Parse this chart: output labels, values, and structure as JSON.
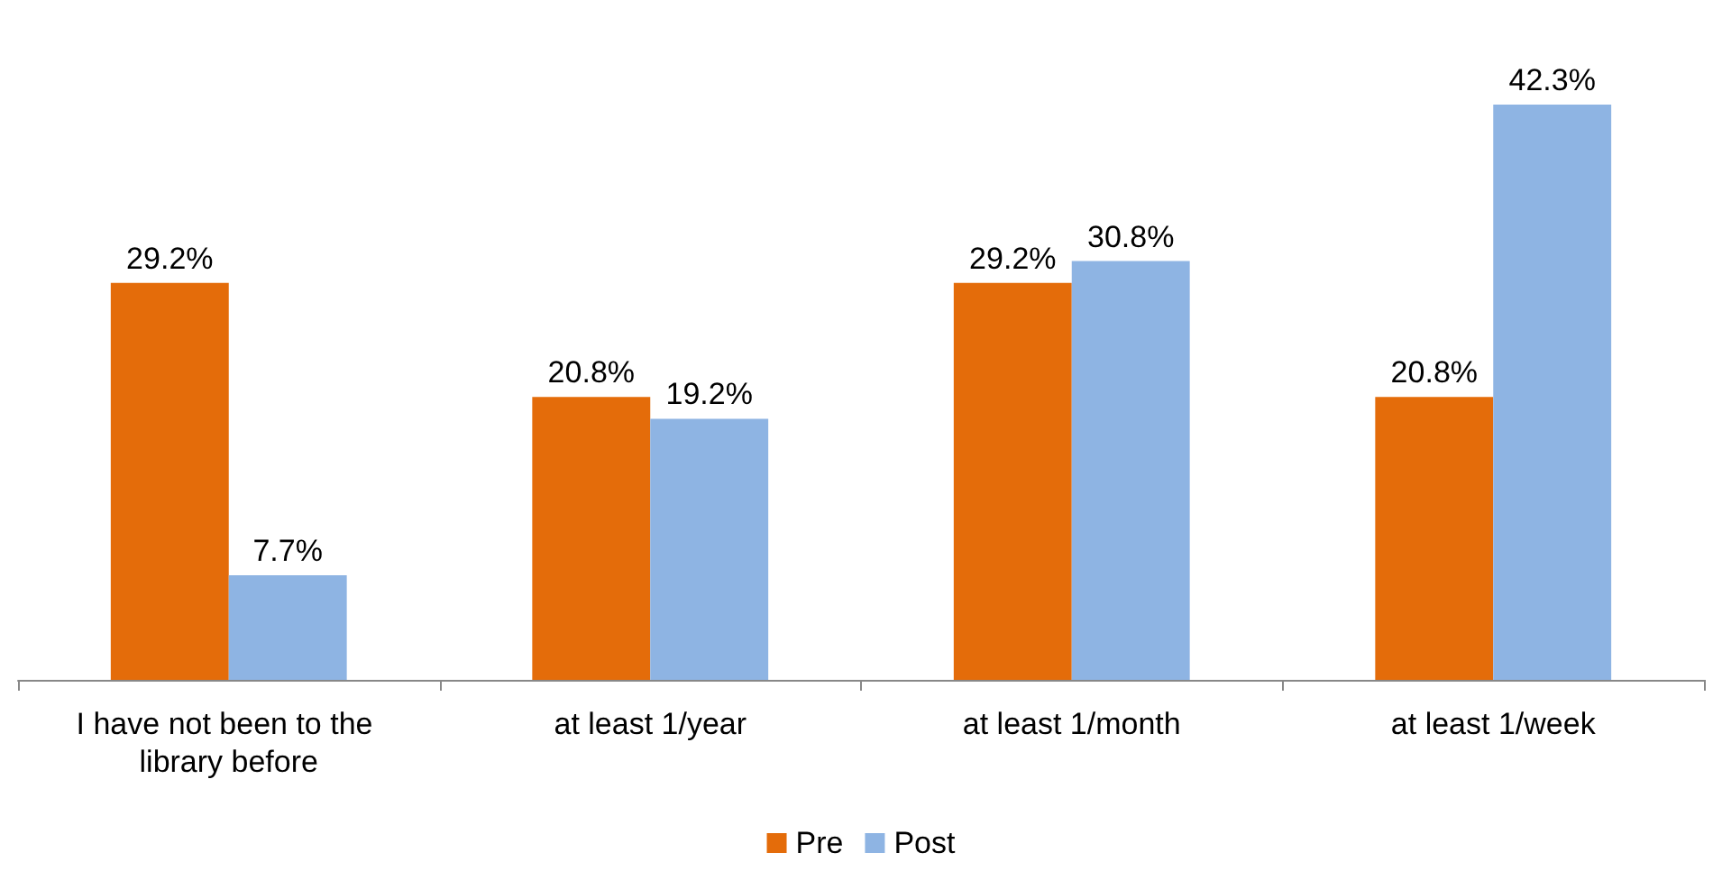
{
  "chart_data": {
    "type": "bar",
    "categories": [
      "I have not been to the library before",
      "at least 1/year",
      "at least 1/month",
      "at least 1/week"
    ],
    "series": [
      {
        "name": "Pre",
        "color": "#e46c0a",
        "values": [
          29.2,
          20.8,
          29.2,
          20.8
        ],
        "value_labels": [
          "29.2%",
          "20.8%",
          "29.2%",
          "20.8%"
        ]
      },
      {
        "name": "Post",
        "color": "#8eb4e3",
        "values": [
          7.7,
          19.2,
          30.8,
          42.3
        ],
        "value_labels": [
          "7.7%",
          "19.2%",
          "30.8%",
          "42.3%"
        ]
      }
    ],
    "legend": "bottom"
  }
}
